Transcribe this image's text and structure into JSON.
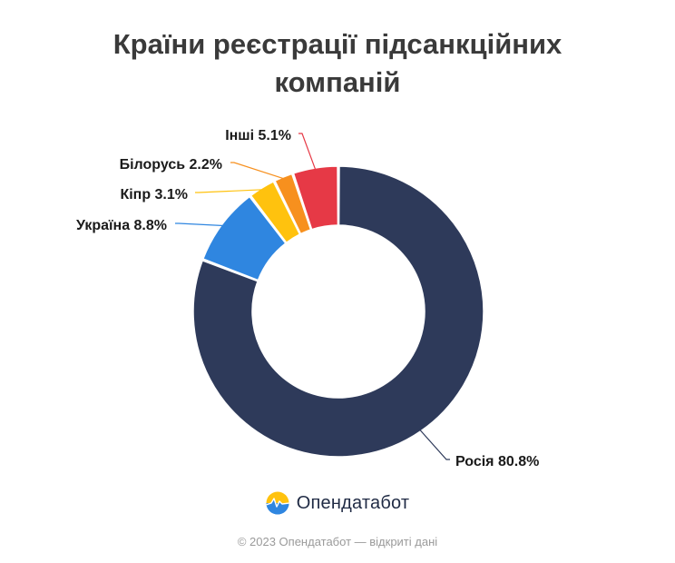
{
  "chart_data": {
    "type": "pie",
    "donut": true,
    "title_lines": [
      "Країни реєстрації підсанкційних",
      "компаній"
    ],
    "slices": [
      {
        "label": "Росія",
        "value_text": "80.8%",
        "value": 80.8,
        "color": "#2e3a5a"
      },
      {
        "label": "Україна",
        "value_text": "8.8%",
        "value": 8.8,
        "color": "#2f86e0"
      },
      {
        "label": "Кіпр",
        "value_text": "3.1%",
        "value": 3.1,
        "color": "#ffc20e"
      },
      {
        "label": "Білорусь",
        "value_text": "2.2%",
        "value": 2.2,
        "color": "#f7901e"
      },
      {
        "label": "Інші",
        "value_text": "5.1%",
        "value": 5.1,
        "color": "#e63946"
      }
    ]
  },
  "brand": {
    "name": "Опендатабот",
    "logo_icon": "opendatabot-logo-icon"
  },
  "footer": {
    "text": "© 2023 Опендатабот — відкриті дані"
  }
}
